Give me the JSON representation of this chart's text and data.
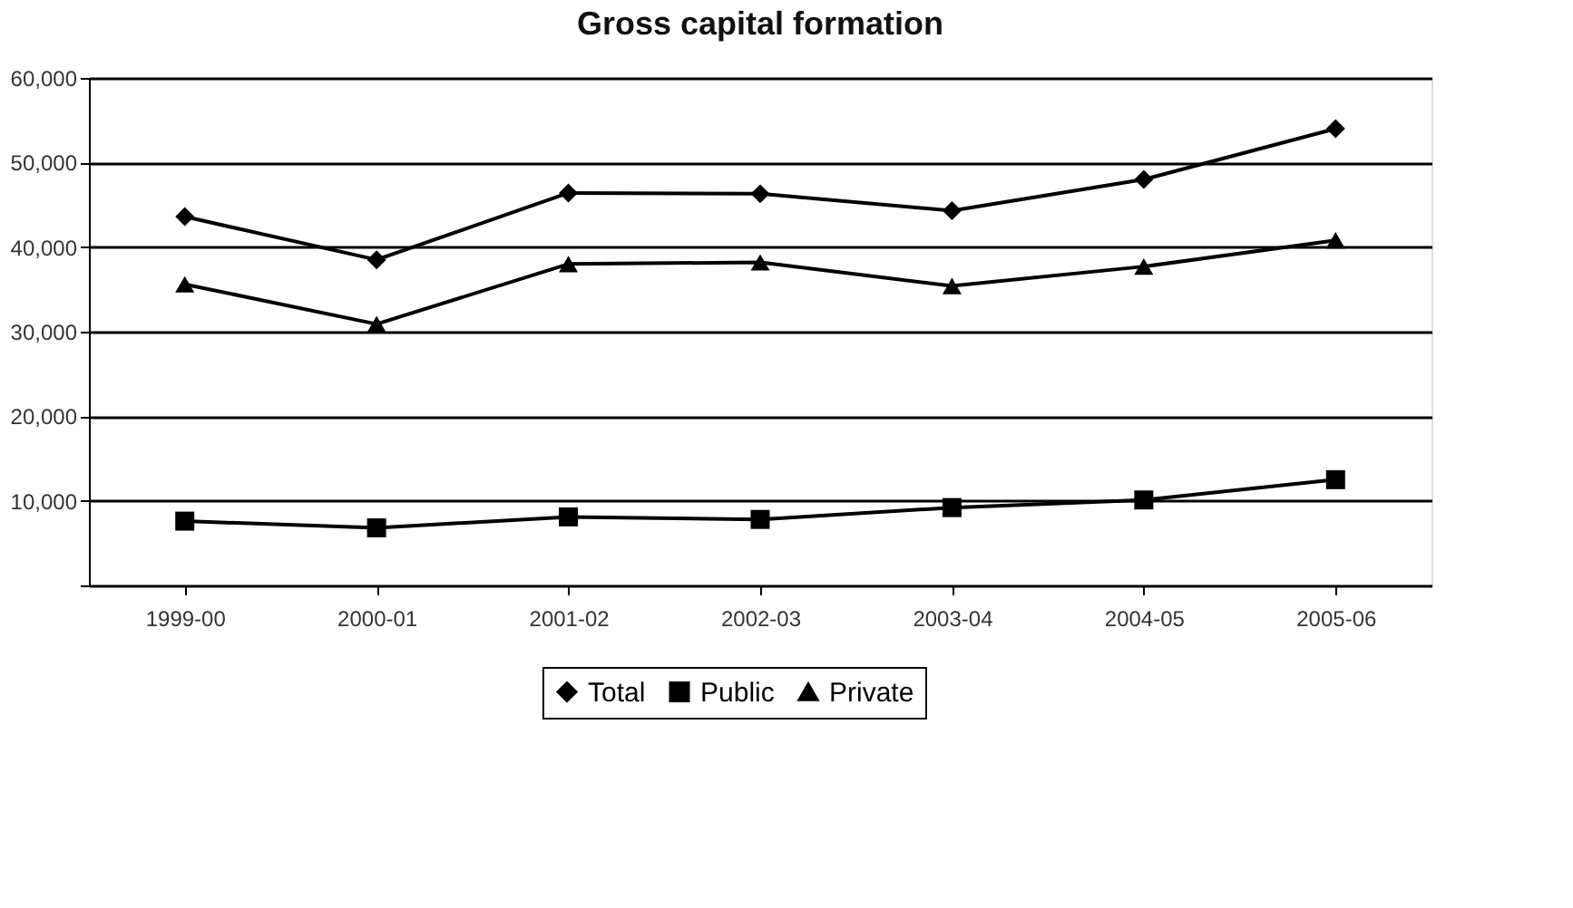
{
  "chart_data": {
    "type": "line",
    "title": "Gross capital formation",
    "categories": [
      "1999-00",
      "2000-01",
      "2001-02",
      "2002-03",
      "2003-04",
      "2004-05",
      "2005-06"
    ],
    "series": [
      {
        "name": "Total",
        "color": "#000000",
        "marker": "diamond",
        "values": [
          43600,
          38500,
          46400,
          46300,
          44300,
          48000,
          54000
        ]
      },
      {
        "name": "Public",
        "color": "#000000",
        "marker": "square",
        "values": [
          7600,
          6800,
          8100,
          7800,
          9200,
          10100,
          12500
        ]
      },
      {
        "name": "Private",
        "color": "#000000",
        "marker": "triangle",
        "values": [
          35600,
          30900,
          38000,
          38200,
          35400,
          37700,
          40800
        ]
      }
    ],
    "ylim": [
      0,
      60000
    ],
    "yticks": [
      {
        "value": 0,
        "label": null
      },
      {
        "value": 10000,
        "label": "10,000"
      },
      {
        "value": 20000,
        "label": "20,000"
      },
      {
        "value": 30000,
        "label": "30,000"
      },
      {
        "value": 40000,
        "label": "40,000"
      },
      {
        "value": 50000,
        "label": "50,000"
      },
      {
        "value": 60000,
        "label": "60,000"
      }
    ],
    "grid": "y",
    "legend": "bottom",
    "line_style": "solid"
  }
}
